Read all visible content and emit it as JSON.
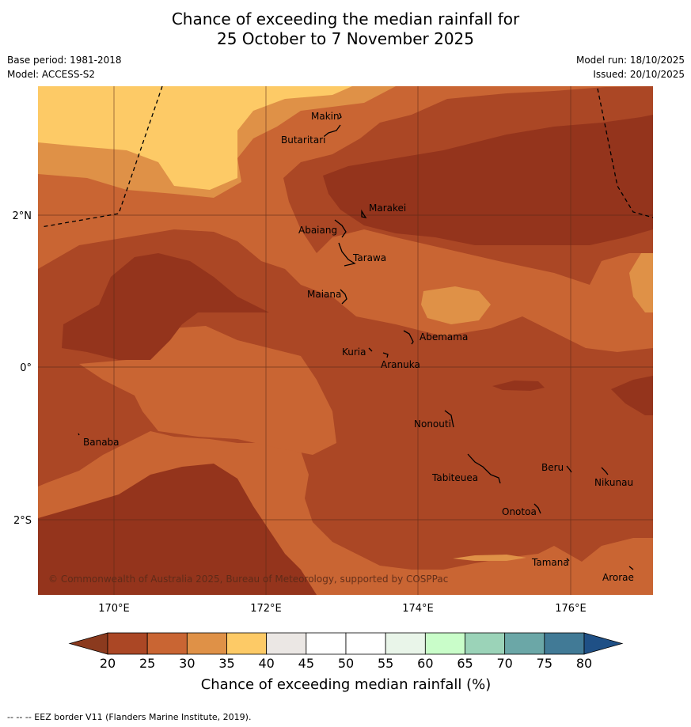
{
  "title_line1": "Chance of exceeding the median rainfall for",
  "title_line2": "25 October to 7 November 2025",
  "base_period": "Base period: 1981-2018",
  "model": "Model: ACCESS-S2",
  "model_run": "Model run: 18/10/2025",
  "issued": "Issued: 20/10/2025",
  "copyright": "© Commonwealth of Australia 2025, Bureau of Meteorology, supported by COSPPac",
  "lat_labels": [
    "2°N",
    "0°",
    "2°S"
  ],
  "lon_labels": [
    "170°E",
    "172°E",
    "174°E",
    "176°E"
  ],
  "places": [
    "Makin",
    "Butaritari",
    "Marakei",
    "Abaiang",
    "Tarawa",
    "Maiana",
    "Abemama",
    "Kuria",
    "Aranuka",
    "Nonouti",
    "Banaba",
    "Tabiteuea",
    "Beru",
    "Nikunau",
    "Onotoa",
    "Tamana",
    "Arorae"
  ],
  "colorbar": {
    "ticks": [
      "20",
      "25",
      "30",
      "35",
      "40",
      "45",
      "50",
      "55",
      "60",
      "65",
      "70",
      "75",
      "80"
    ],
    "colors": [
      "#8b3a1e",
      "#ab4725",
      "#c96533",
      "#df9147",
      "#fdca66",
      "#ebe7e4",
      "#ffffff",
      "#ffffff",
      "#e9f5e9",
      "#c9fdc9",
      "#9bd3b8",
      "#6ba7a7",
      "#417a96",
      "#1f5086"
    ],
    "label": "Chance of exceeding median rainfall (%)"
  },
  "footer": "--  --  -- EEZ border V11 (Flanders Marine Institute, 2019)."
}
